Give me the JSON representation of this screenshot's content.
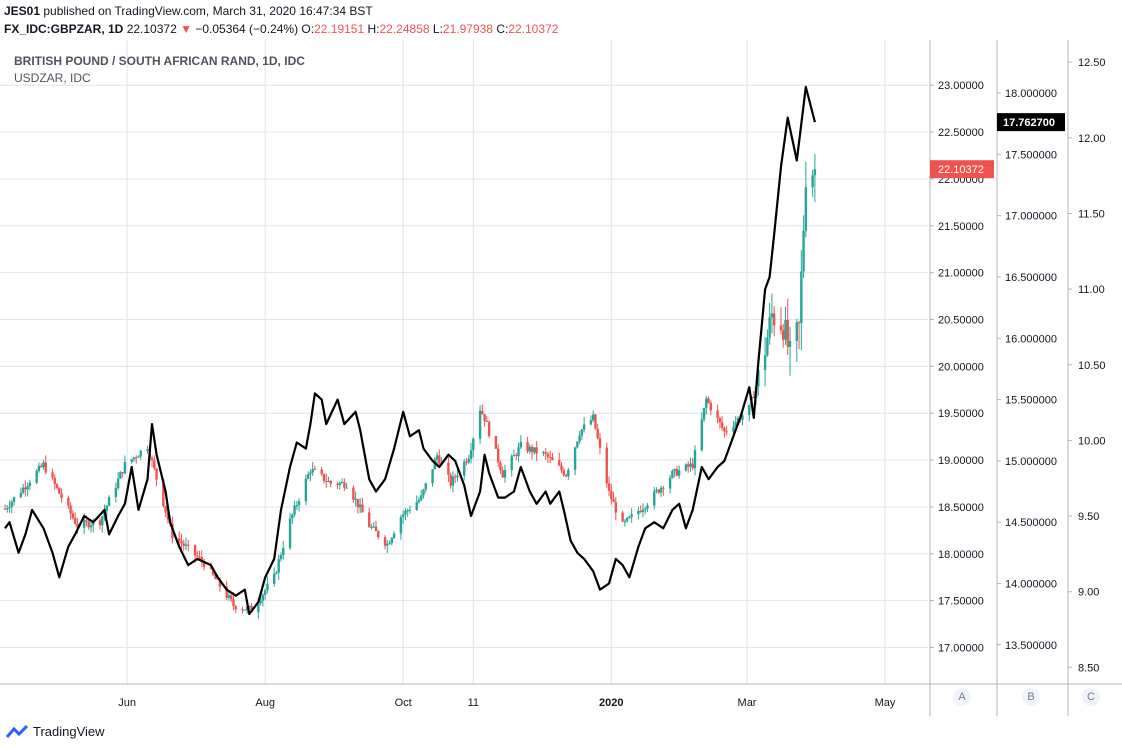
{
  "header": {
    "publisher_user": "JES01",
    "publish_text": "published on TradingView.com, March 31, 2020 16:47:34 BST",
    "symbol": "FX_IDC:GBPZAR, 1D",
    "last_price": "22.10372",
    "change_arrow": "▼",
    "change": "−0.05364 (−0.24%)",
    "o_label": "O:",
    "o_value": "22.19151",
    "h_label": "H:",
    "h_value": "22.24858",
    "l_label": "L:",
    "l_value": "21.97938",
    "c_label": "C:",
    "c_value": "22.10372"
  },
  "legend": {
    "main_series": "BRITISH POUND / SOUTH AFRICAN RAND, 1D, IDC",
    "compare_series": "USDZAR, IDC"
  },
  "scale_buttons": [
    "A",
    "B",
    "C"
  ],
  "footer": {
    "brand": "TradingView"
  },
  "colors": {
    "up": "#26a69a",
    "down": "#ef5350",
    "line": "#000000",
    "grid": "#e0e3eb",
    "text": "#131722"
  },
  "chart_data": {
    "type": "candlestick+line",
    "x_tick_labels": [
      "Jun",
      "Aug",
      "Oct",
      "11",
      "2020",
      "Mar",
      "May"
    ],
    "x_range": [
      "2019-04-08",
      "2020-05-20"
    ],
    "axis_a": {
      "ticks": [
        "17.00000",
        "17.50000",
        "18.00000",
        "18.50000",
        "19.00000",
        "19.50000",
        "20.00000",
        "20.50000",
        "21.00000",
        "21.50000",
        "22.00000",
        "22.50000",
        "23.00000"
      ],
      "range": [
        16.61,
        23.44
      ]
    },
    "axis_b": {
      "ticks": [
        "13.500000",
        "14.000000",
        "14.500000",
        "15.000000",
        "15.500000",
        "16.000000",
        "16.500000",
        "17.000000",
        "17.500000",
        "18.000000"
      ],
      "range": [
        13.18,
        18.4
      ]
    },
    "axis_c": {
      "ticks": [
        "8.50",
        "9.00",
        "9.50",
        "10.00",
        "10.50",
        "11.00",
        "11.50",
        "12.00",
        "12.50"
      ],
      "range": [
        8.39,
        12.62
      ]
    },
    "gbpzar_last_label": "22.10372",
    "usdzar_last_label": "17.762700",
    "gbpzar_key_points": [
      [
        "2019-04-08",
        18.48
      ],
      [
        "2019-04-25",
        18.95
      ],
      [
        "2019-05-10",
        18.3
      ],
      [
        "2019-05-20",
        18.35
      ],
      [
        "2019-05-31",
        18.95
      ],
      [
        "2019-06-10",
        19.15
      ],
      [
        "2019-06-21",
        18.2
      ],
      [
        "2019-07-05",
        17.9
      ],
      [
        "2019-07-18",
        17.45
      ],
      [
        "2019-07-26",
        17.4
      ],
      [
        "2019-08-05",
        17.75
      ],
      [
        "2019-08-12",
        18.35
      ],
      [
        "2019-08-21",
        18.9
      ],
      [
        "2019-08-30",
        18.75
      ],
      [
        "2019-09-06",
        18.75
      ],
      [
        "2019-09-16",
        18.3
      ],
      [
        "2019-09-24",
        18.1
      ],
      [
        "2019-09-30",
        18.4
      ],
      [
        "2019-10-09",
        18.6
      ],
      [
        "2019-10-16",
        19.05
      ],
      [
        "2019-10-22",
        18.75
      ],
      [
        "2019-10-30",
        19.05
      ],
      [
        "2019-11-04",
        19.55
      ],
      [
        "2019-11-06",
        19.45
      ],
      [
        "2019-11-14",
        18.85
      ],
      [
        "2019-11-22",
        19.15
      ],
      [
        "2019-12-03",
        19.05
      ],
      [
        "2019-12-12",
        18.85
      ],
      [
        "2019-12-18",
        19.3
      ],
      [
        "2019-12-24",
        19.45
      ],
      [
        "2019-12-31",
        18.65
      ],
      [
        "2020-01-06",
        18.3
      ],
      [
        "2020-01-17",
        18.55
      ],
      [
        "2020-01-28",
        18.85
      ],
      [
        "2020-02-06",
        18.95
      ],
      [
        "2020-02-12",
        19.65
      ],
      [
        "2020-02-20",
        19.3
      ],
      [
        "2020-03-02",
        19.55
      ],
      [
        "2020-03-07",
        19.95
      ],
      [
        "2020-03-12",
        20.55
      ],
      [
        "2020-03-17",
        20.45
      ],
      [
        "2020-03-20",
        20.1
      ],
      [
        "2020-03-24",
        20.4
      ],
      [
        "2020-03-27",
        22.05
      ],
      [
        "2020-03-31",
        22.10372
      ]
    ],
    "usdzar_points": [
      [
        "2019-04-08",
        14.45
      ],
      [
        "2019-04-10",
        14.5
      ],
      [
        "2019-04-14",
        14.25
      ],
      [
        "2019-04-17",
        14.4
      ],
      [
        "2019-04-20",
        14.6
      ],
      [
        "2019-04-25",
        14.45
      ],
      [
        "2019-04-29",
        14.25
      ],
      [
        "2019-05-02",
        14.05
      ],
      [
        "2019-05-06",
        14.3
      ],
      [
        "2019-05-09",
        14.4
      ],
      [
        "2019-05-13",
        14.55
      ],
      [
        "2019-05-17",
        14.5
      ],
      [
        "2019-05-22",
        14.6
      ],
      [
        "2019-05-24",
        14.4
      ],
      [
        "2019-05-28",
        14.55
      ],
      [
        "2019-05-31",
        14.65
      ],
      [
        "2019-06-03",
        14.95
      ],
      [
        "2019-06-06",
        14.6
      ],
      [
        "2019-06-10",
        14.85
      ],
      [
        "2019-06-12",
        15.3
      ],
      [
        "2019-06-14",
        15.05
      ],
      [
        "2019-06-18",
        14.75
      ],
      [
        "2019-06-20",
        14.5
      ],
      [
        "2019-06-24",
        14.3
      ],
      [
        "2019-06-28",
        14.15
      ],
      [
        "2019-07-02",
        14.2
      ],
      [
        "2019-07-08",
        14.15
      ],
      [
        "2019-07-11",
        14.05
      ],
      [
        "2019-07-15",
        13.95
      ],
      [
        "2019-07-19",
        13.9
      ],
      [
        "2019-07-23",
        13.95
      ],
      [
        "2019-07-25",
        13.75
      ],
      [
        "2019-07-29",
        13.85
      ],
      [
        "2019-08-01",
        14.05
      ],
      [
        "2019-08-05",
        14.2
      ],
      [
        "2019-08-08",
        14.6
      ],
      [
        "2019-08-12",
        14.95
      ],
      [
        "2019-08-15",
        15.15
      ],
      [
        "2019-08-19",
        15.1
      ],
      [
        "2019-08-21",
        15.3
      ],
      [
        "2019-08-23",
        15.55
      ],
      [
        "2019-08-26",
        15.5
      ],
      [
        "2019-08-28",
        15.3
      ],
      [
        "2019-09-02",
        15.5
      ],
      [
        "2019-09-05",
        15.3
      ],
      [
        "2019-09-10",
        15.4
      ],
      [
        "2019-09-12",
        15.25
      ],
      [
        "2019-09-16",
        14.85
      ],
      [
        "2019-09-19",
        14.75
      ],
      [
        "2019-09-23",
        14.85
      ],
      [
        "2019-09-27",
        15.1
      ],
      [
        "2019-10-01",
        15.4
      ],
      [
        "2019-10-04",
        15.2
      ],
      [
        "2019-10-08",
        15.25
      ],
      [
        "2019-10-10",
        15.1
      ],
      [
        "2019-10-14",
        15.0
      ],
      [
        "2019-10-17",
        14.95
      ],
      [
        "2019-10-21",
        15.05
      ],
      [
        "2019-10-24",
        15.0
      ],
      [
        "2019-10-28",
        14.8
      ],
      [
        "2019-10-31",
        14.55
      ],
      [
        "2019-11-04",
        14.75
      ],
      [
        "2019-11-06",
        15.05
      ],
      [
        "2019-11-08",
        14.9
      ],
      [
        "2019-11-12",
        14.7
      ],
      [
        "2019-11-15",
        14.7
      ],
      [
        "2019-11-19",
        14.75
      ],
      [
        "2019-11-22",
        14.95
      ],
      [
        "2019-11-26",
        14.75
      ],
      [
        "2019-11-29",
        14.65
      ],
      [
        "2019-12-03",
        14.75
      ],
      [
        "2019-12-05",
        14.65
      ],
      [
        "2019-12-09",
        14.75
      ],
      [
        "2019-12-11",
        14.6
      ],
      [
        "2019-12-14",
        14.35
      ],
      [
        "2019-12-17",
        14.25
      ],
      [
        "2019-12-20",
        14.2
      ],
      [
        "2019-12-24",
        14.1
      ],
      [
        "2019-12-27",
        13.95
      ],
      [
        "2019-12-31",
        14.0
      ],
      [
        "2020-01-03",
        14.2
      ],
      [
        "2020-01-06",
        14.15
      ],
      [
        "2020-01-09",
        14.05
      ],
      [
        "2020-01-13",
        14.3
      ],
      [
        "2020-01-16",
        14.45
      ],
      [
        "2020-01-20",
        14.5
      ],
      [
        "2020-01-24",
        14.45
      ],
      [
        "2020-01-28",
        14.6
      ],
      [
        "2020-01-31",
        14.65
      ],
      [
        "2020-02-03",
        14.45
      ],
      [
        "2020-02-06",
        14.6
      ],
      [
        "2020-02-10",
        14.95
      ],
      [
        "2020-02-13",
        14.85
      ],
      [
        "2020-02-17",
        14.95
      ],
      [
        "2020-02-20",
        15.0
      ],
      [
        "2020-02-24",
        15.2
      ],
      [
        "2020-02-27",
        15.35
      ],
      [
        "2020-03-02",
        15.6
      ],
      [
        "2020-03-04",
        15.35
      ],
      [
        "2020-03-06",
        15.8
      ],
      [
        "2020-03-09",
        16.4
      ],
      [
        "2020-03-11",
        16.5
      ],
      [
        "2020-03-13",
        16.85
      ],
      [
        "2020-03-16",
        17.4
      ],
      [
        "2020-03-19",
        17.8
      ],
      [
        "2020-03-23",
        17.45
      ],
      [
        "2020-03-26",
        17.9
      ],
      [
        "2020-03-27",
        18.05
      ],
      [
        "2020-03-31",
        17.7627
      ]
    ]
  }
}
